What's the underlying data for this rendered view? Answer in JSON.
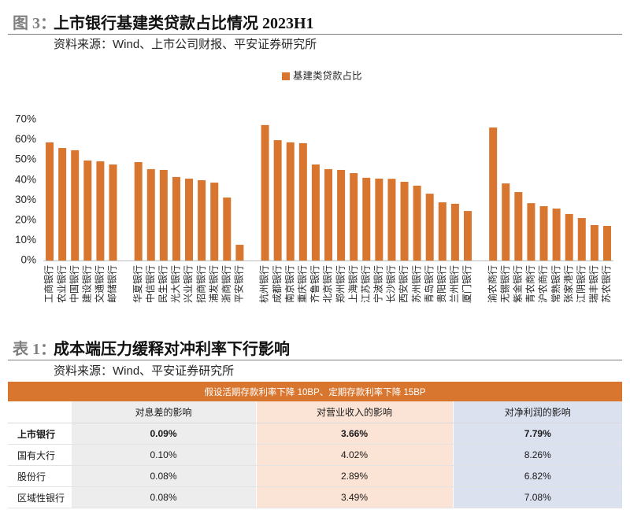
{
  "figure": {
    "label": "图 3：",
    "source": "资料来源：Wind、上市公司财报、平安证券研究所"
  },
  "chart_data": {
    "type": "bar",
    "title": "上市银行基建类贷款占比情况 2023H1",
    "categories": [
      "工商银行",
      "农业银行",
      "中国银行",
      "建设银行",
      "交通银行",
      "邮储银行",
      "",
      "华夏银行",
      "中信银行",
      "民生银行",
      "光大银行",
      "兴业银行",
      "招商银行",
      "浦发银行",
      "浙商银行",
      "平安银行",
      "",
      "杭州银行",
      "成都银行",
      "南京银行",
      "重庆银行",
      "齐鲁银行",
      "北京银行",
      "郑州银行",
      "上海银行",
      "江苏银行",
      "宁波银行",
      "长沙银行",
      "西安银行",
      "苏州银行",
      "青岛银行",
      "贵阳银行",
      "兰州银行",
      "厦门银行",
      "",
      "渝农商行",
      "无锡银行",
      "紫金银行",
      "青农商行",
      "沪农商行",
      "常熟银行",
      "张家港行",
      "江阴银行",
      "瑞丰银行",
      "苏农银行"
    ],
    "series": [
      {
        "name": "基建类贷款占比",
        "values": [
          58.7,
          55.9,
          54.8,
          49.7,
          49.3,
          47.7,
          null,
          48.9,
          45.4,
          45.0,
          41.5,
          40.7,
          39.9,
          38.7,
          31.3,
          7.8,
          null,
          67.3,
          59.8,
          58.7,
          58.3,
          47.7,
          45.4,
          45.0,
          43.4,
          41.1,
          40.7,
          40.6,
          39.1,
          37.2,
          33.2,
          28.9,
          28.2,
          24.6,
          null,
          66.1,
          38.3,
          34.0,
          28.5,
          27.0,
          25.8,
          23.1,
          21.1,
          17.6,
          17.2
        ]
      }
    ],
    "ylim": [
      0,
      70
    ],
    "yticks": [
      0,
      10,
      20,
      30,
      40,
      50,
      60,
      70
    ],
    "ytick_labels": [
      "0%",
      "10%",
      "20%",
      "30%",
      "40%",
      "50%",
      "60%",
      "70%"
    ],
    "legend_position": "top",
    "grid": false
  },
  "table": {
    "label": "表 1：",
    "title": "成本端压力缓释对冲利率下行影响",
    "source": "资料来源：Wind、平安证券研究所",
    "banner": "假设活期存款利率下降 10BP、定期存款利率下降 15BP",
    "columns": [
      "对息差的影响",
      "对营业收入的影响",
      "对净利润的影响"
    ],
    "rows": [
      {
        "label": "上市银行",
        "values": [
          "0.09%",
          "3.66%",
          "7.79%"
        ]
      },
      {
        "label": "国有大行",
        "values": [
          "0.10%",
          "4.02%",
          "8.26%"
        ]
      },
      {
        "label": "股份行",
        "values": [
          "0.08%",
          "2.89%",
          "6.82%"
        ]
      },
      {
        "label": "区域性银行",
        "values": [
          "0.08%",
          "3.49%",
          "7.08%"
        ]
      }
    ]
  },
  "colors": {
    "bar": "#D8762F",
    "caption_label": "#7F7F7F",
    "rule": "#7F7F7F",
    "table_banner": "#D8762F",
    "col_margin": "#EDEDED",
    "col_revenue": "#FBE4D5",
    "col_profit": "#DCE1F0"
  }
}
